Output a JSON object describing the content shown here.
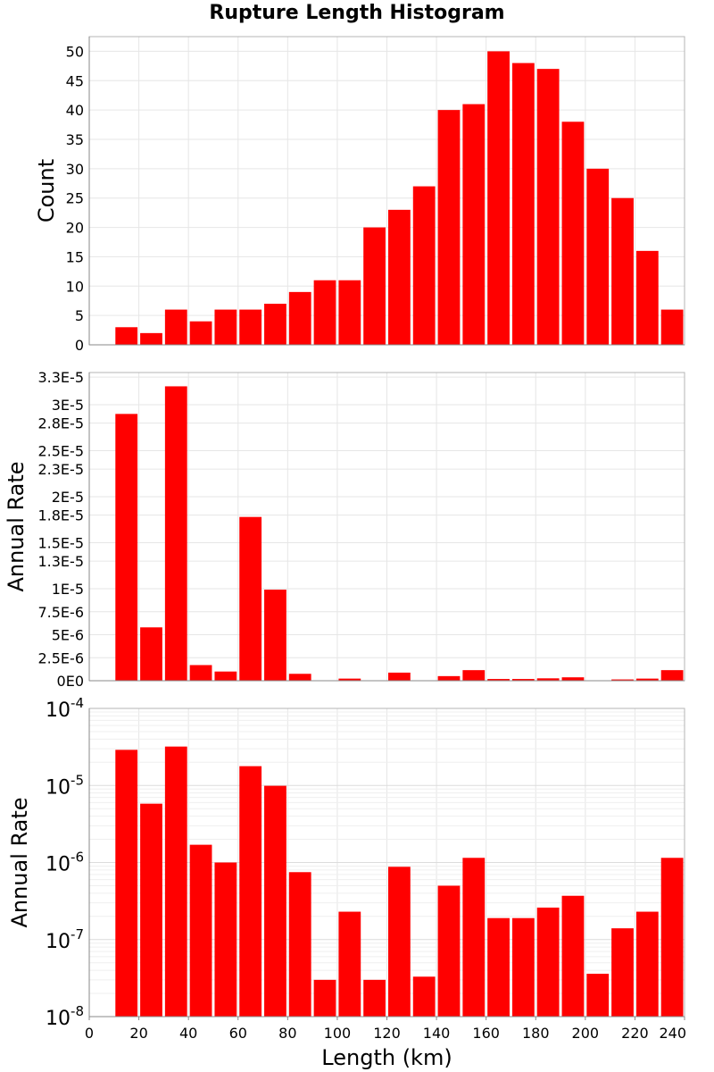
{
  "title": "Rupture Length Histogram",
  "chart_data": [
    {
      "type": "bar",
      "ylabel": "Count",
      "xlim": [
        0,
        240
      ],
      "ylim": [
        0,
        52.5
      ],
      "yticks": [
        "0",
        "5",
        "10",
        "15",
        "20",
        "25",
        "30",
        "35",
        "40",
        "45",
        "50"
      ],
      "bin_centers": [
        15,
        25,
        35,
        45,
        55,
        65,
        75,
        85,
        95,
        105,
        115,
        125,
        135,
        145,
        155,
        165,
        175,
        185,
        195,
        205,
        215,
        225,
        235
      ],
      "values": [
        3,
        2,
        6,
        4,
        6,
        6,
        7,
        9,
        11,
        11,
        20,
        23,
        27,
        40,
        41,
        50,
        48,
        47,
        38,
        30,
        25,
        16,
        6
      ],
      "color": "#ff0000",
      "grid": true
    },
    {
      "type": "bar",
      "ylabel": "Annual Rate",
      "xlim": [
        0,
        240
      ],
      "ylim": [
        0,
        3.35e-05
      ],
      "yticks": [
        "0E0",
        "2.5E-6",
        "5E-6",
        "7.5E-6",
        "1E-5",
        "1.3E-5",
        "1.5E-5",
        "1.8E-5",
        "2E-5",
        "2.3E-5",
        "2.5E-5",
        "2.8E-5",
        "3E-5",
        "3.3E-5"
      ],
      "bin_centers": [
        15,
        25,
        35,
        45,
        55,
        65,
        75,
        85,
        95,
        105,
        115,
        125,
        135,
        145,
        155,
        165,
        175,
        185,
        195,
        205,
        215,
        225,
        235
      ],
      "values": [
        2.9e-05,
        5.8e-06,
        3.2e-05,
        1.7e-06,
        1e-06,
        1.78e-05,
        9.9e-06,
        7.5e-07,
        3e-08,
        2.3e-07,
        3e-08,
        8.8e-07,
        3.3e-08,
        5e-07,
        1.15e-06,
        1.9e-07,
        1.9e-07,
        2.6e-07,
        3.7e-07,
        3.6e-08,
        1.4e-07,
        2.3e-07,
        1.15e-06
      ],
      "color": "#ff0000",
      "grid": true
    },
    {
      "type": "bar",
      "ylabel": "Annual Rate",
      "xlabel": "Length (km)",
      "yscale": "log",
      "xlim": [
        0,
        240
      ],
      "ylim": [
        1e-08,
        0.0001
      ],
      "xticks": [
        "0",
        "20",
        "40",
        "60",
        "80",
        "100",
        "120",
        "140",
        "160",
        "180",
        "200",
        "220",
        "240"
      ],
      "yticks_exponents": [
        "-8",
        "-7",
        "-6",
        "-5",
        "-4"
      ],
      "ytick_base": "10",
      "bin_centers": [
        15,
        25,
        35,
        45,
        55,
        65,
        75,
        85,
        95,
        105,
        115,
        125,
        135,
        145,
        155,
        165,
        175,
        185,
        195,
        205,
        215,
        225,
        235
      ],
      "values": [
        2.9e-05,
        5.8e-06,
        3.2e-05,
        1.7e-06,
        1e-06,
        1.78e-05,
        9.9e-06,
        7.5e-07,
        3e-08,
        2.3e-07,
        3e-08,
        8.8e-07,
        3.3e-08,
        5e-07,
        1.15e-06,
        1.9e-07,
        1.9e-07,
        2.6e-07,
        3.7e-07,
        3.6e-08,
        1.4e-07,
        2.3e-07,
        1.15e-06
      ],
      "color": "#ff0000",
      "grid": true
    }
  ]
}
